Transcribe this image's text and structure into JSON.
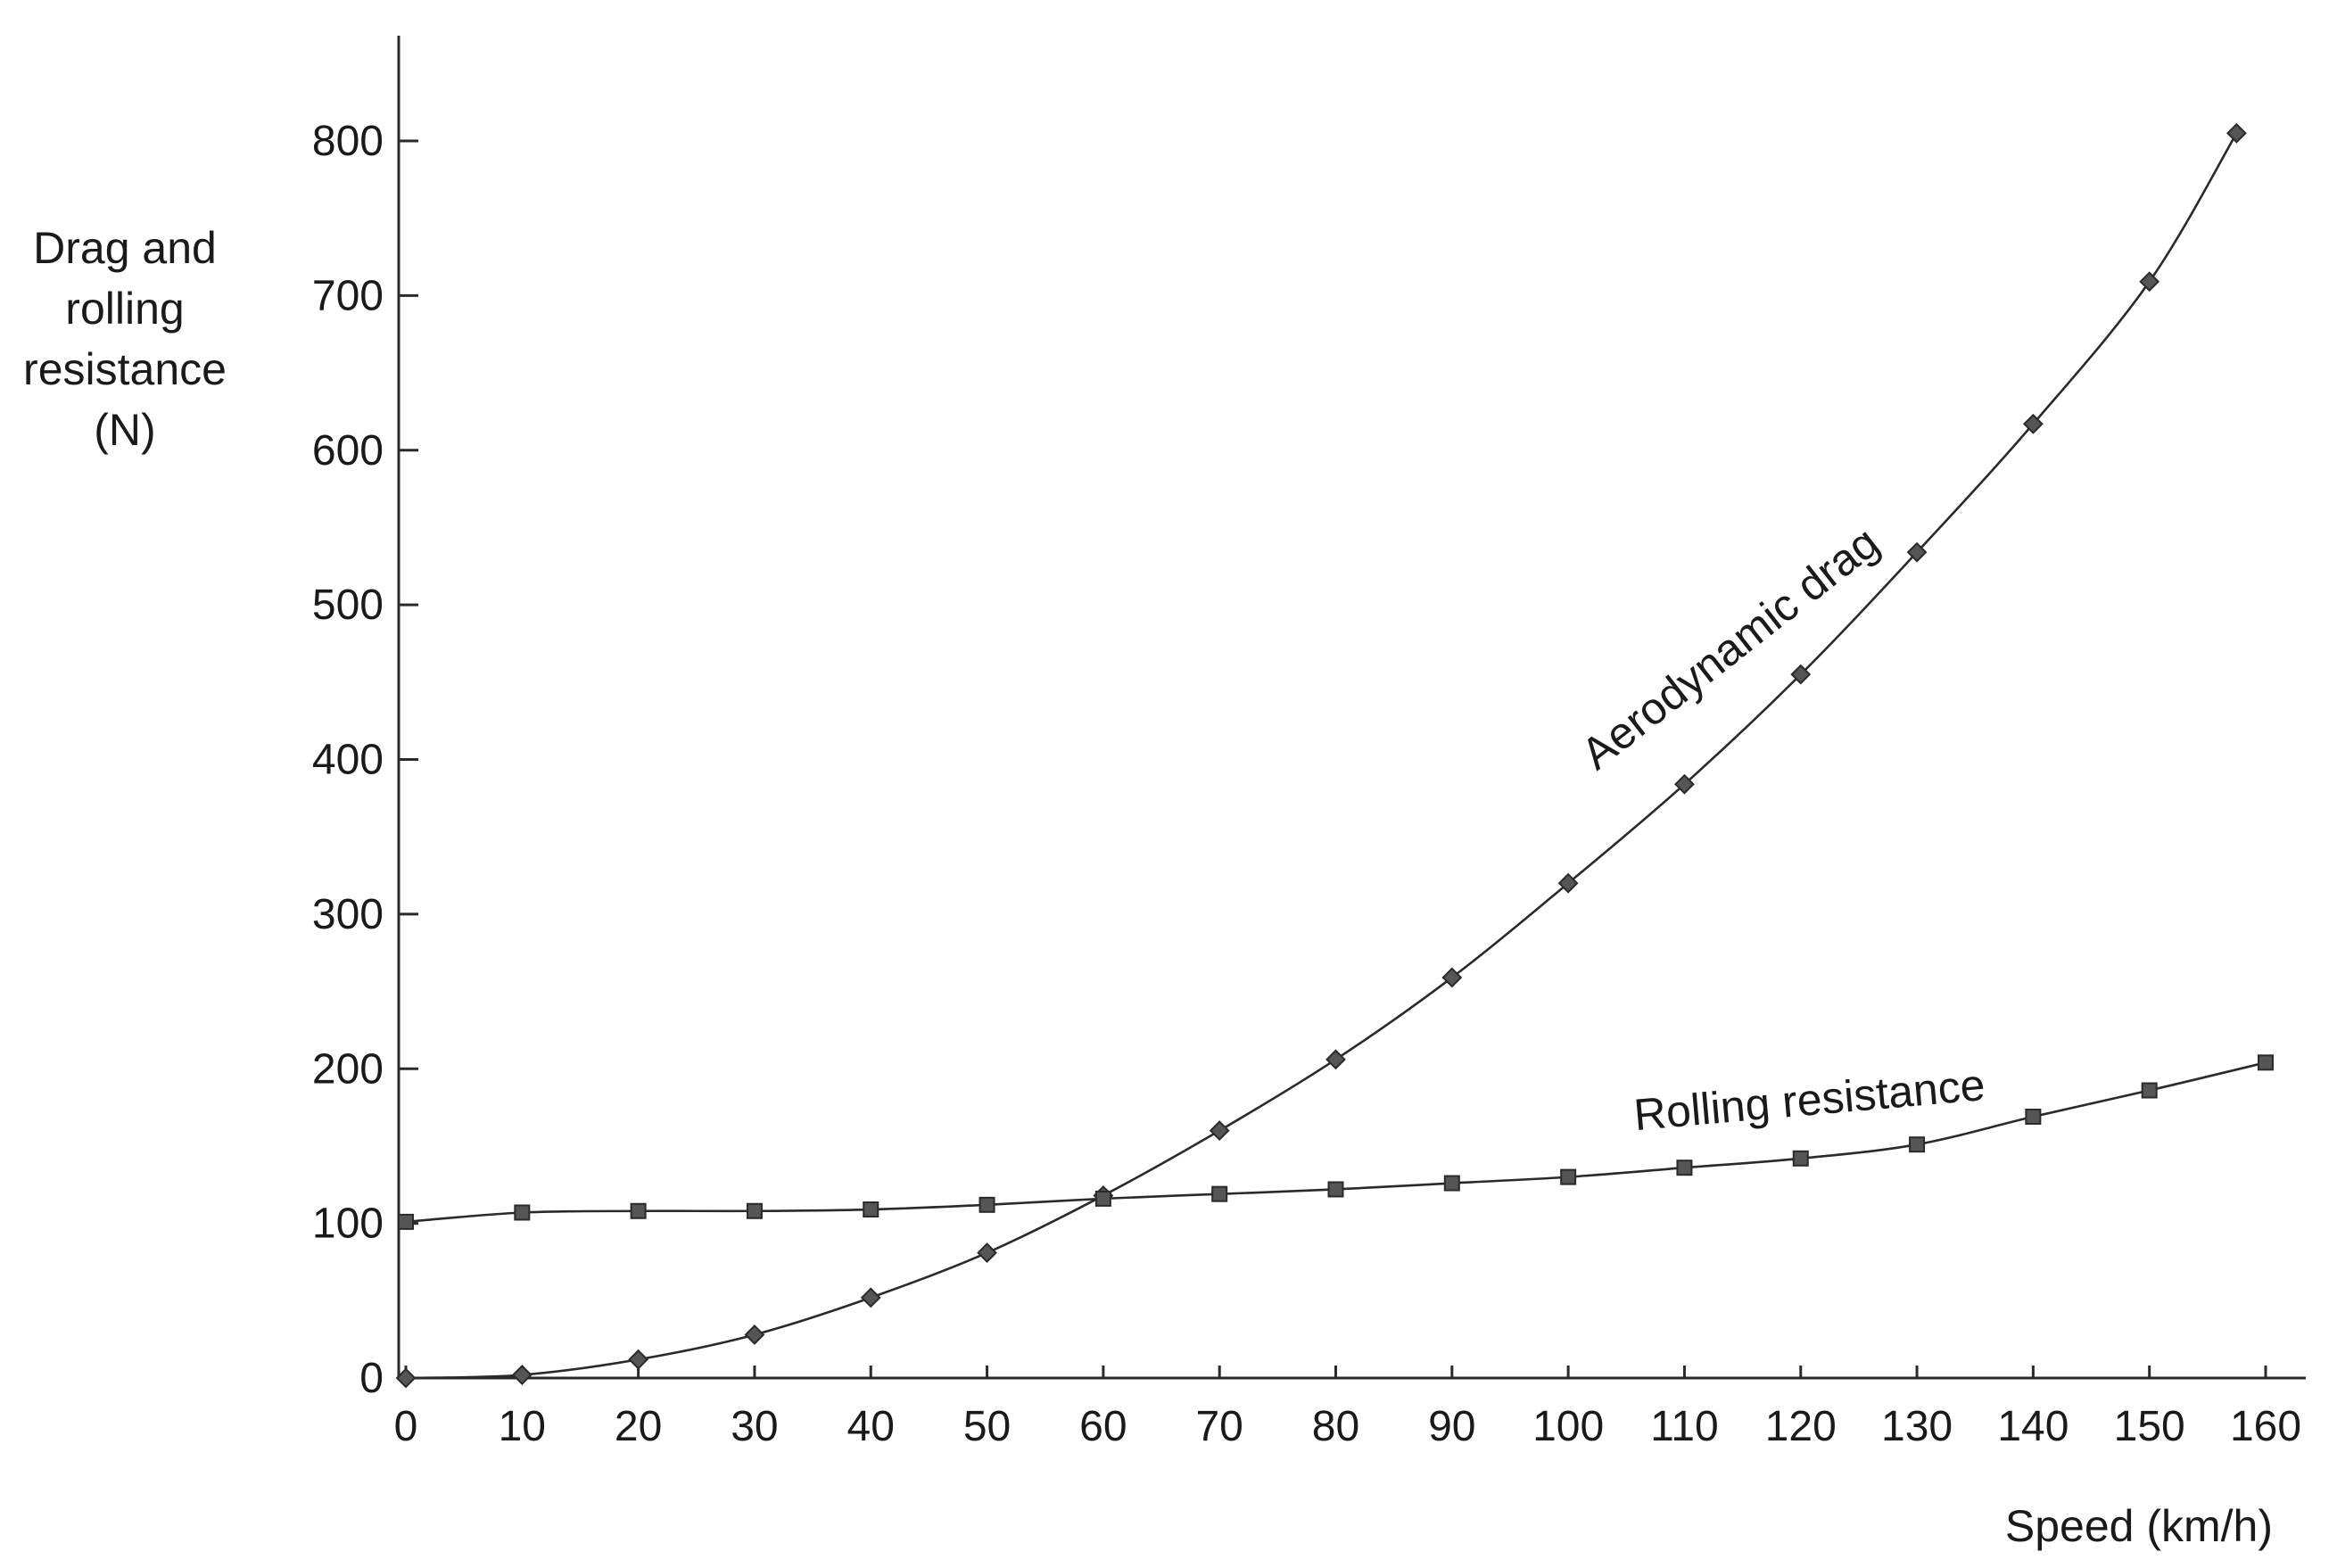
{
  "chart_data": {
    "type": "line",
    "title": "",
    "ylabel_lines": [
      "Drag and",
      "rolling",
      "resistance",
      "(N)"
    ],
    "xlabel": "Speed (km/h)",
    "xlim": [
      0,
      160
    ],
    "ylim": [
      0,
      800
    ],
    "x_ticks": [
      0,
      10,
      20,
      30,
      40,
      50,
      60,
      70,
      80,
      90,
      100,
      110,
      120,
      130,
      140,
      150,
      160
    ],
    "y_ticks": [
      0,
      100,
      200,
      300,
      400,
      500,
      600,
      700,
      800
    ],
    "grid": false,
    "legend": "none",
    "colors": {
      "ink": "#2a2a2a",
      "marker_fill": "#555555"
    },
    "series": [
      {
        "name": "Aerodynamic drag",
        "marker": "diamond",
        "x": [
          0,
          10,
          20,
          30,
          40,
          50,
          60,
          70,
          80,
          90,
          100,
          110,
          120,
          130,
          140,
          150,
          157.5
        ],
        "values": [
          0,
          2,
          12,
          28,
          52,
          81,
          118,
          160,
          206,
          259,
          320,
          384,
          455,
          534,
          617,
          709,
          805
        ]
      },
      {
        "name": "Rolling resistance",
        "marker": "square",
        "x": [
          0,
          10,
          20,
          30,
          40,
          50,
          60,
          70,
          80,
          90,
          100,
          110,
          120,
          130,
          140,
          150,
          160
        ],
        "values": [
          101,
          107,
          108,
          108,
          109,
          112,
          116,
          119,
          122,
          126,
          130,
          136,
          142,
          151,
          169,
          186,
          204
        ]
      }
    ]
  }
}
